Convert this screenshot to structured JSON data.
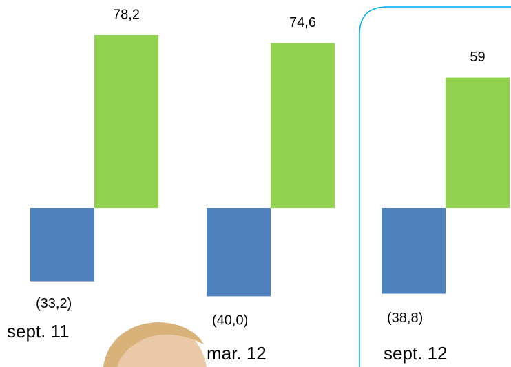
{
  "chart_data": {
    "type": "bar",
    "categories": [
      "sept. 11",
      "mar. 12",
      "sept. 12"
    ],
    "series": [
      {
        "color": "#4f81bd",
        "values": [
          -33.2,
          -40.0,
          -38.8
        ],
        "value_labels": [
          "(33,2)",
          "(40,0)",
          "(38,8)"
        ]
      },
      {
        "color": "#92d050",
        "values": [
          78.2,
          74.6,
          59
        ],
        "value_labels": [
          "78,2",
          "74,6",
          "59"
        ]
      }
    ]
  }
}
